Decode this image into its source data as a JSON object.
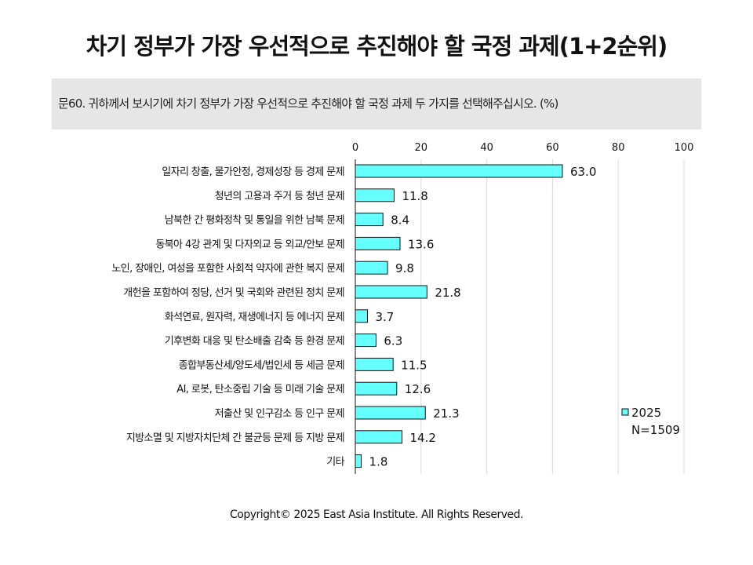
{
  "title": "차기 정부가 가장 우선적으로 추진해야 할 국정 과제(1+2순위)",
  "question": "문60. 귀하께서 보시기에 차기 정부가 가장 우선적으로 추진해야 할 국정 과제 두 가지를 선택해주십시오.   (%)",
  "footer": "Copyright© 2025 East Asia Institute. All Rights Reserved.",
  "colors": {
    "bar_fill": "#66ffff",
    "bar_stroke": "#111111",
    "grid": "#d9d9d9",
    "text": "#111111"
  },
  "chart_data": {
    "type": "bar",
    "orientation": "horizontal",
    "categories": [
      "일자리 창출, 물가안정, 경제성장 등 경제 문제",
      "청년의 고용과 주거 등 청년 문제",
      "남북한 간 평화정착 및 통일을 위한 남북 문제",
      "동북아 4강 관계 및 다자외교 등 외교/안보 문제",
      "노인, 장애인, 여성을 포함한 사회적 약자에 관한 복지 문제",
      "개헌을 포함하여 정당, 선거 및 국회와 관련된 정치 문제",
      "화석연료, 원자력, 재생에너지 등 에너지 문제",
      "기후변화 대응 및 탄소배출 감축 등 환경 문제",
      "종합부동산세/양도세/법인세 등 세금 문제",
      "AI, 로봇, 탄소중립 기술 등 미래 기술 문제",
      "저출산 및 인구감소 등 인구 문제",
      "지방소멸 및 지방자치단체 간 불균등 문제 등 지방 문제",
      "기타"
    ],
    "series": [
      {
        "name": "2025",
        "values": [
          63.0,
          11.8,
          8.4,
          13.6,
          9.8,
          21.8,
          3.7,
          6.3,
          11.5,
          12.6,
          21.3,
          14.2,
          1.8
        ],
        "labels": [
          "63.0",
          "11.8",
          "8.4",
          "13.6",
          "9.8",
          "21.8",
          "3.7",
          "6.3",
          "11.5",
          "12.6",
          "21.3",
          "14.2",
          "1.8"
        ]
      }
    ],
    "xlim": [
      0,
      100
    ],
    "xticks": [
      0,
      20,
      40,
      60,
      80,
      100
    ],
    "x_axis_position": "top",
    "grid": true,
    "legend": {
      "position": "right",
      "entries": [
        "2025"
      ],
      "note": "N=1509"
    }
  }
}
